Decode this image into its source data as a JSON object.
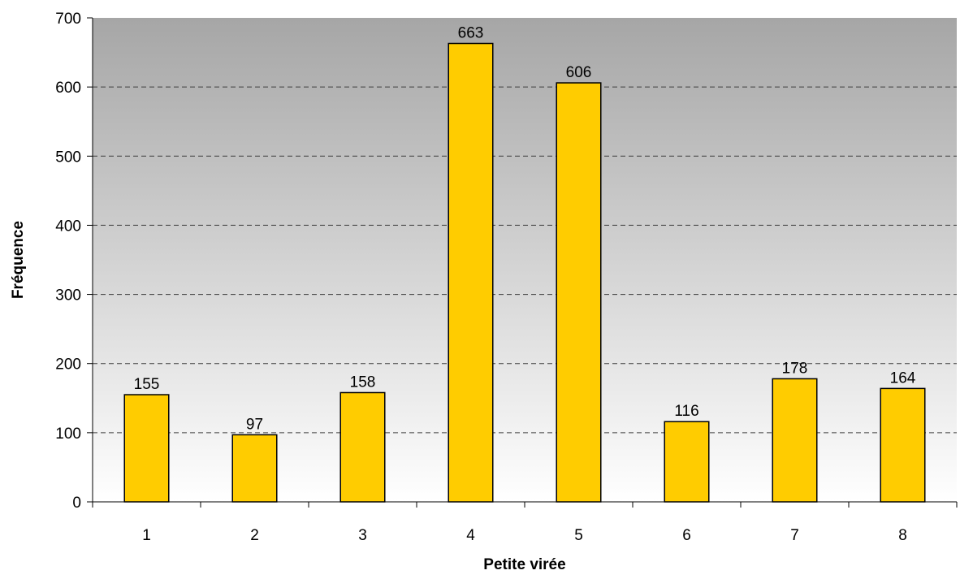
{
  "chart_data": {
    "type": "bar",
    "title": "",
    "xlabel": "Petite virée",
    "ylabel": "Fréquence",
    "categories": [
      "1",
      "2",
      "3",
      "4",
      "5",
      "6",
      "7",
      "8"
    ],
    "values": [
      155,
      97,
      158,
      663,
      606,
      116,
      178,
      164
    ],
    "data_labels": [
      "155",
      "97",
      "158",
      "663",
      "606",
      "116",
      "178",
      "164"
    ],
    "ylim": [
      0,
      700
    ],
    "yticks": [
      0,
      100,
      200,
      300,
      400,
      500,
      600,
      700
    ],
    "ytick_labels": [
      "0",
      "100",
      "200",
      "300",
      "400",
      "500",
      "600",
      "700"
    ],
    "grid": "horizontal dashed",
    "legend": "none",
    "colors": {
      "bar_fill": "#FFCC00",
      "bar_stroke": "#000000",
      "plot_bg_top": "#A6A6A6",
      "plot_bg_bottom": "#FFFFFF",
      "grid": "#404040"
    }
  }
}
